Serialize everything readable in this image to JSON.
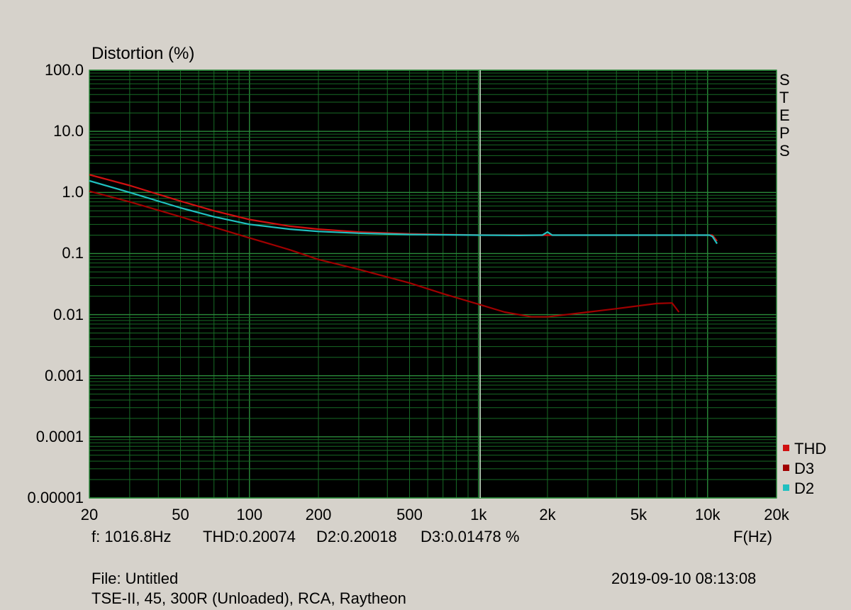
{
  "chart_data": {
    "type": "line",
    "title": "Distortion (%)",
    "xlabel": "F(Hz)",
    "xscale": "log",
    "yscale": "log",
    "xlim": [
      20,
      20000
    ],
    "ylim": [
      1e-05,
      100
    ],
    "grid": true,
    "legend_position": "bottom-right",
    "x_tick_labels": [
      {
        "value": 20,
        "label": "20"
      },
      {
        "value": 50,
        "label": "50"
      },
      {
        "value": 100,
        "label": "100"
      },
      {
        "value": 200,
        "label": "200"
      },
      {
        "value": 500,
        "label": "500"
      },
      {
        "value": 1000,
        "label": "1k"
      },
      {
        "value": 2000,
        "label": "2k"
      },
      {
        "value": 5000,
        "label": "5k"
      },
      {
        "value": 10000,
        "label": "10k"
      },
      {
        "value": 20000,
        "label": "20k"
      }
    ],
    "y_tick_labels": [
      {
        "value": 100,
        "label": "100.0"
      },
      {
        "value": 10,
        "label": "10.0"
      },
      {
        "value": 1,
        "label": "1.0"
      },
      {
        "value": 0.1,
        "label": "0.1"
      },
      {
        "value": 0.01,
        "label": "0.01"
      },
      {
        "value": 0.001,
        "label": "0.001"
      },
      {
        "value": 0.0001,
        "label": "0.0001"
      },
      {
        "value": 1e-05,
        "label": "0.00001"
      }
    ],
    "cursor_freq": 1016.8,
    "side_label": "STEPS",
    "series": [
      {
        "name": "THD",
        "color": "#d01010",
        "points": [
          [
            20,
            1.95
          ],
          [
            30,
            1.3
          ],
          [
            50,
            0.72
          ],
          [
            70,
            0.5
          ],
          [
            100,
            0.36
          ],
          [
            150,
            0.28
          ],
          [
            200,
            0.25
          ],
          [
            300,
            0.225
          ],
          [
            500,
            0.21
          ],
          [
            700,
            0.205
          ],
          [
            1000,
            0.201
          ],
          [
            1500,
            0.2
          ],
          [
            2000,
            0.2
          ],
          [
            3000,
            0.2
          ],
          [
            5000,
            0.2
          ],
          [
            9500,
            0.2
          ],
          [
            10500,
            0.2
          ],
          [
            11000,
            0.16
          ]
        ]
      },
      {
        "name": "D3",
        "color": "#a00000",
        "points": [
          [
            20,
            1.05
          ],
          [
            30,
            0.7
          ],
          [
            50,
            0.4
          ],
          [
            70,
            0.27
          ],
          [
            100,
            0.18
          ],
          [
            150,
            0.115
          ],
          [
            200,
            0.08
          ],
          [
            300,
            0.055
          ],
          [
            500,
            0.033
          ],
          [
            700,
            0.022
          ],
          [
            1000,
            0.0148
          ],
          [
            1300,
            0.011
          ],
          [
            1700,
            0.0092
          ],
          [
            2000,
            0.0092
          ],
          [
            3000,
            0.011
          ],
          [
            4000,
            0.0125
          ],
          [
            6000,
            0.0152
          ],
          [
            7000,
            0.0155
          ],
          [
            7500,
            0.011
          ]
        ]
      },
      {
        "name": "D2",
        "color": "#20c0c0",
        "points": [
          [
            20,
            1.55
          ],
          [
            30,
            1.0
          ],
          [
            50,
            0.56
          ],
          [
            70,
            0.4
          ],
          [
            100,
            0.3
          ],
          [
            150,
            0.25
          ],
          [
            200,
            0.23
          ],
          [
            300,
            0.215
          ],
          [
            500,
            0.205
          ],
          [
            1000,
            0.2
          ],
          [
            1500,
            0.198
          ],
          [
            1900,
            0.2
          ],
          [
            2000,
            0.225
          ],
          [
            2100,
            0.2
          ],
          [
            3000,
            0.2
          ],
          [
            5000,
            0.2
          ],
          [
            9500,
            0.2
          ],
          [
            10200,
            0.2
          ],
          [
            10500,
            0.19
          ],
          [
            11000,
            0.145
          ]
        ]
      }
    ]
  },
  "readout": {
    "freq": "f: 1016.8Hz",
    "thd": "THD:0.20074",
    "d2": "D2:0.20018",
    "d3": "D3:0.01478 %"
  },
  "file": {
    "name": "File: Untitled",
    "description": "TSE-II, 45, 300R (Unloaded), RCA, Raytheon",
    "timestamp": "2019-09-10 08:13:08"
  }
}
